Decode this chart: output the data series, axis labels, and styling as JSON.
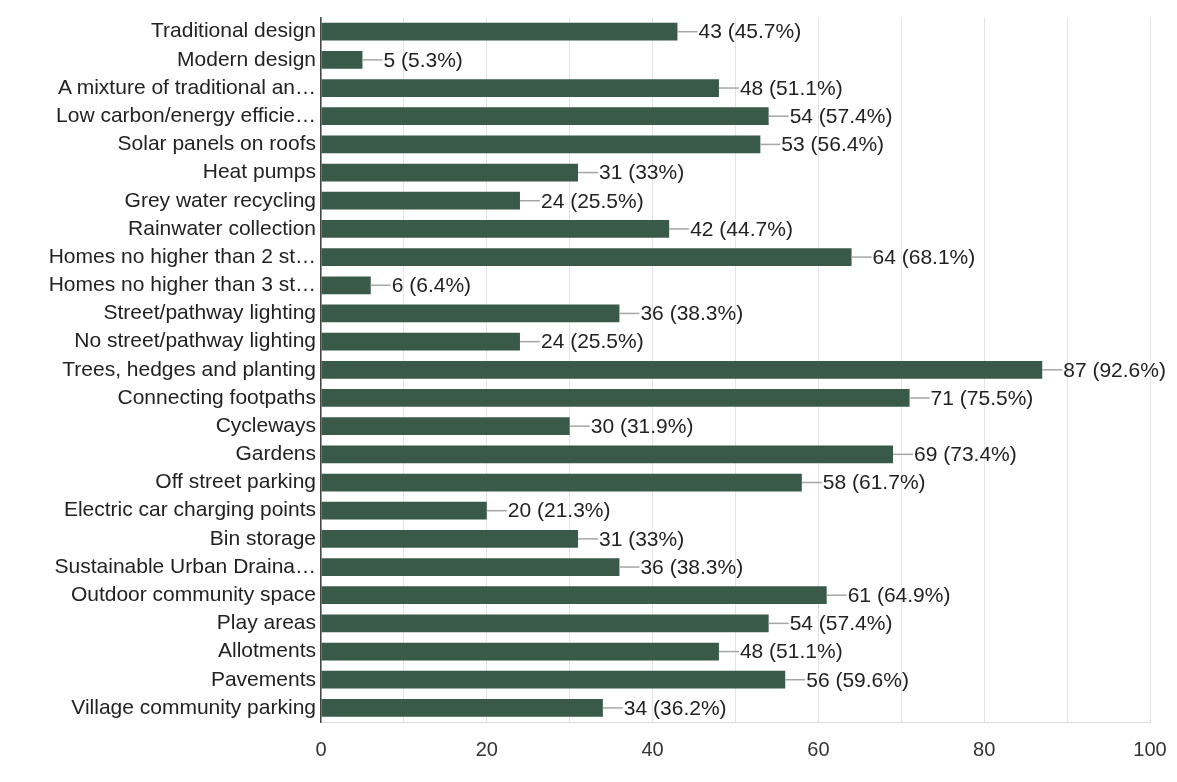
{
  "chart_data": {
    "type": "bar",
    "orientation": "horizontal",
    "categories": [
      "Traditional design",
      "Modern design",
      "A mixture of traditional an…",
      "Low carbon/energy efficie…",
      "Solar panels on roofs",
      "Heat pumps",
      "Grey water recycling",
      "Rainwater collection",
      "Homes no higher than 2 st…",
      "Homes no higher than 3 st…",
      "Street/pathway lighting",
      "No street/pathway lighting",
      "Trees, hedges and planting",
      "Connecting footpaths",
      "Cycleways",
      "Gardens",
      "Off street parking",
      "Electric car charging points",
      "Bin storage",
      "Sustainable Urban Draina…",
      "Outdoor community space",
      "Play areas",
      "Allotments",
      "Pavements",
      "Village community parking"
    ],
    "values": [
      43,
      5,
      48,
      54,
      53,
      31,
      24,
      42,
      64,
      6,
      36,
      24,
      87,
      71,
      30,
      69,
      58,
      20,
      31,
      36,
      61,
      54,
      48,
      56,
      34
    ],
    "value_labels": [
      "43 (45.7%)",
      "5 (5.3%)",
      "48 (51.1%)",
      "54 (57.4%)",
      "53 (56.4%)",
      "31 (33%)",
      "24 (25.5%)",
      "42 (44.7%)",
      "64 (68.1%)",
      "6 (6.4%)",
      "36 (38.3%)",
      "24 (25.5%)",
      "87 (92.6%)",
      "71 (75.5%)",
      "30 (31.9%)",
      "69 (73.4%)",
      "58 (61.7%)",
      "20 (21.3%)",
      "31 (33%)",
      "36 (38.3%)",
      "61 (64.9%)",
      "54 (57.4%)",
      "48 (51.1%)",
      "56 (59.6%)",
      "34 (36.2%)"
    ],
    "color": "#395a48",
    "xlim": [
      0,
      100
    ],
    "xticks": [
      0,
      {
        "value": 10,
        "label": null
      },
      20,
      {
        "value": 30,
        "label": null
      },
      40,
      {
        "value": 50,
        "label": null
      },
      60,
      {
        "value": 70,
        "label": null
      },
      80,
      {
        "value": 90,
        "label": null
      },
      100
    ],
    "grid": "x",
    "legend": false
  }
}
